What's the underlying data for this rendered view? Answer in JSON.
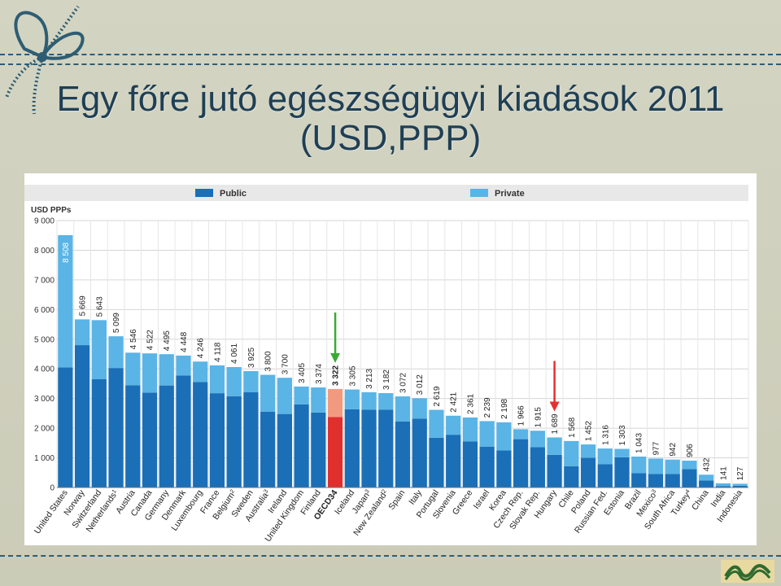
{
  "slide": {
    "title_line1": "Egy főre jutó egészségügyi kiadások 2011",
    "title_line2": "(USD,PPP)"
  },
  "icons": [
    "ribbon-bow-icon",
    "logo-icon",
    "green-arrow-icon",
    "red-arrow-icon"
  ],
  "colors": {
    "public": "#1a6fb7",
    "private": "#5ab4e5",
    "oecd_public": "#e0302e",
    "oecd_private": "#f29a80",
    "green_arrow": "#3aaa35",
    "red_arrow": "#e53030"
  },
  "chart_data": {
    "type": "bar",
    "stacked": true,
    "ylabel": "USD PPPs",
    "ylim": [
      0,
      9000
    ],
    "yticks": [
      0,
      1000,
      2000,
      3000,
      4000,
      5000,
      6000,
      7000,
      8000,
      9000
    ],
    "ytick_labels": [
      "0",
      "1 000",
      "2 000",
      "3 000",
      "4 000",
      "5 000",
      "6 000",
      "7 000",
      "8 000",
      "9 000"
    ],
    "grid": true,
    "legend_position": "top",
    "series": [
      {
        "name": "Public",
        "values": [
          4050,
          4800,
          3650,
          4030,
          3450,
          3200,
          3440,
          3780,
          3560,
          3180,
          3080,
          3210,
          2560,
          2480,
          2800,
          2530,
          2380,
          2640,
          2620,
          2620,
          2230,
          2320,
          1680,
          1780,
          1550,
          1380,
          1250,
          1630,
          1360,
          1100,
          720,
          1000,
          790,
          1020,
          480,
          460,
          460,
          620,
          240,
          50,
          60
        ]
      },
      {
        "name": "Private",
        "values": [
          4458,
          869,
          1993,
          1069,
          1096,
          1322,
          1055,
          668,
          686,
          938,
          981,
          715,
          1240,
          1220,
          605,
          844,
          942,
          665,
          593,
          562,
          842,
          692,
          939,
          641,
          811,
          859,
          948,
          336,
          555,
          589,
          848,
          452,
          526,
          283,
          563,
          517,
          482,
          286,
          192,
          91,
          67
        ]
      }
    ],
    "categories": [
      "United States",
      "Norway",
      "Switzerland",
      "Netherlands",
      "Austria",
      "Canada",
      "Germany",
      "Denmark",
      "Luxembourg",
      "France",
      "Belgium",
      "Sweden",
      "Australia",
      "Ireland",
      "United Kingdom",
      "Finland",
      "OECD34",
      "Iceland",
      "Japan",
      "New Zealand",
      "Spain",
      "Italy",
      "Portugal",
      "Slovenia",
      "Greece",
      "Israel",
      "Korea",
      "Czech Rep.",
      "Slovak Rep.",
      "Hungary",
      "Chile",
      "Poland",
      "Russian Fed.",
      "Estonia",
      "Brazil",
      "Mexico",
      "South Africa",
      "Turkey",
      "China",
      "India",
      "Indonesia"
    ],
    "category_superscripts": [
      "",
      "",
      "",
      "1",
      "",
      "",
      "",
      "",
      "",
      "",
      "2",
      "",
      "3",
      "",
      "",
      "",
      "",
      "",
      "3",
      "2",
      "",
      "",
      "",
      "",
      "",
      "",
      "",
      "",
      "",
      "",
      "",
      "",
      "",
      "",
      "",
      "3",
      "",
      "4",
      "",
      "",
      ""
    ],
    "totals": [
      8508,
      5669,
      5643,
      5099,
      4546,
      4522,
      4495,
      4448,
      4246,
      4118,
      4061,
      3925,
      3800,
      3700,
      3405,
      3374,
      3322,
      3305,
      3213,
      3182,
      3072,
      3012,
      2619,
      2421,
      2361,
      2239,
      2198,
      1966,
      1915,
      1689,
      1568,
      1452,
      1316,
      1303,
      1043,
      977,
      942,
      906,
      432,
      141,
      127
    ],
    "total_labels": [
      "8 508",
      "5 669",
      "5 643",
      "5 099",
      "4 546",
      "4 522",
      "4 495",
      "4 448",
      "4 246",
      "4 118",
      "4 061",
      "3 925",
      "3 800",
      "3 700",
      "3 405",
      "3 374",
      "3 322",
      "3 305",
      "3 213",
      "3 182",
      "3 072",
      "3 012",
      "2 619",
      "2 421",
      "2 361",
      "2 239",
      "2 198",
      "1 966",
      "1 915",
      "1 689",
      "1 568",
      "1 452",
      "1 316",
      "1 303",
      "1 043",
      "977",
      "942",
      "906",
      "432",
      "141",
      "127"
    ],
    "highlight_category": "OECD34",
    "annotations": [
      {
        "type": "arrow",
        "color": "green",
        "target": "OECD34"
      },
      {
        "type": "arrow",
        "color": "red",
        "target": "Hungary"
      }
    ]
  }
}
